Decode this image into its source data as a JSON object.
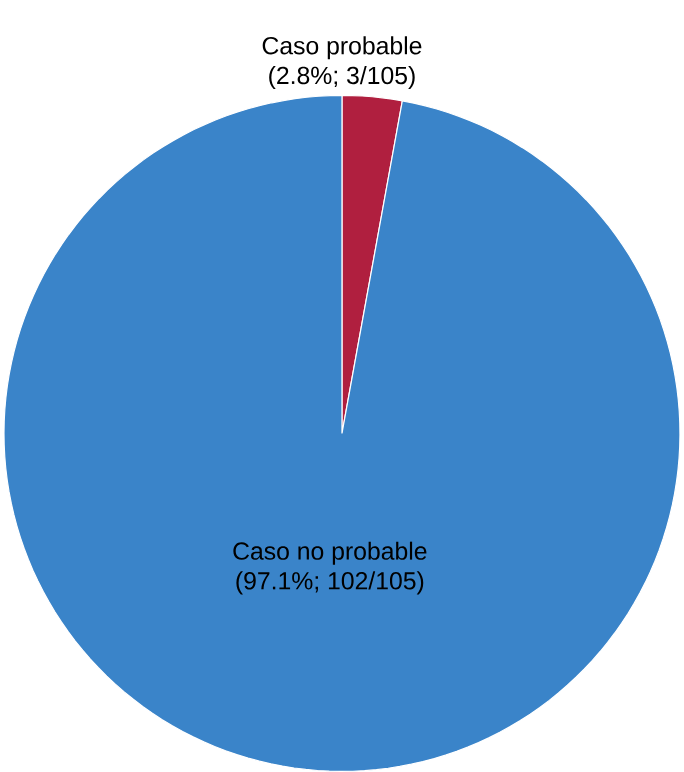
{
  "chart_data": {
    "type": "pie",
    "categories": [
      "Caso probable",
      "Caso no probable"
    ],
    "values": [
      3,
      102
    ],
    "value_labels": [
      "(2.8%; 3/105)",
      "(97.1%; 102/105)"
    ],
    "colors": [
      "#b01f3f",
      "#3a84c9"
    ]
  }
}
